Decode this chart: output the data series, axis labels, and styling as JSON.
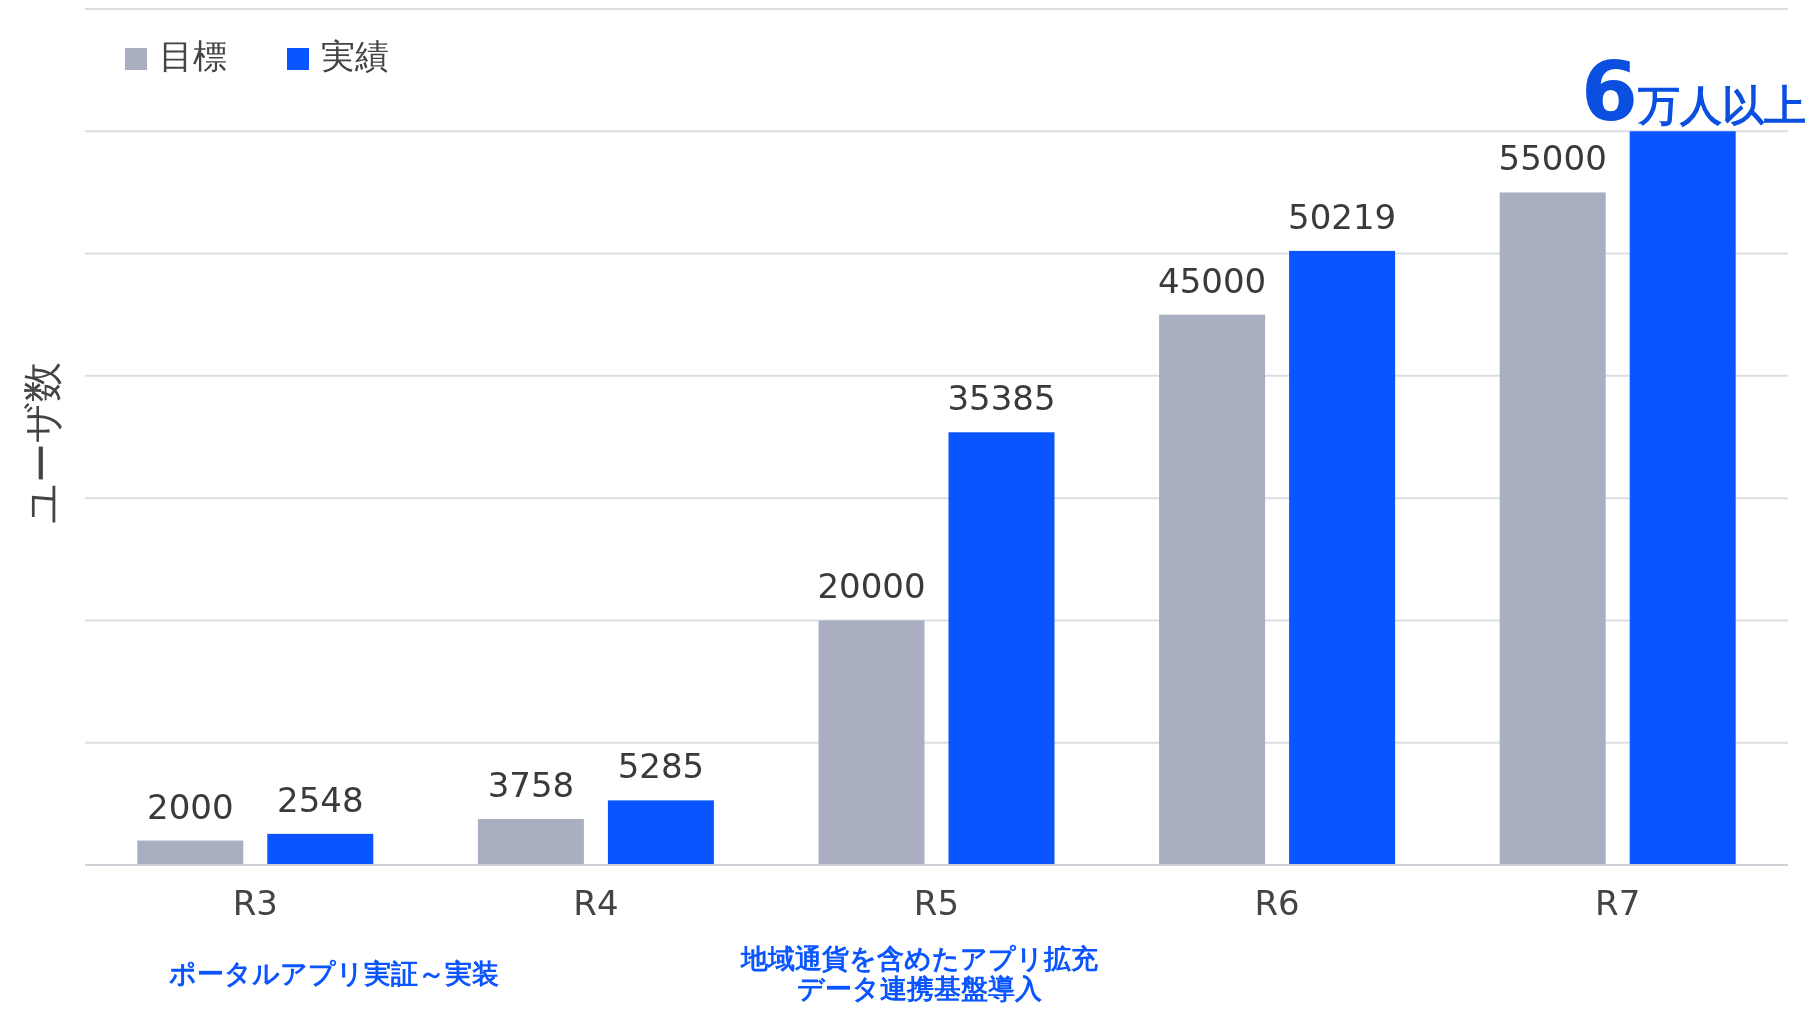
{
  "chart_data": {
    "type": "bar",
    "ylabel": "ユーザ数",
    "categories": [
      "R3",
      "R4",
      "R5",
      "R6",
      "R7"
    ],
    "series": [
      {
        "name": "目標",
        "color": "#a9afc0",
        "values": [
          2000,
          3758,
          20000,
          45000,
          55000
        ],
        "value_labels": [
          "2000",
          "3758",
          "20000",
          "45000",
          "55000"
        ]
      },
      {
        "name": "実績",
        "color": "#0a55ff",
        "values": [
          2548,
          5285,
          35385,
          50219,
          60000
        ],
        "value_labels": [
          "2548",
          "5285",
          "35385",
          "50219",
          null
        ]
      }
    ],
    "ylim": [
      0,
      70000
    ],
    "yticks": [
      {
        "value": 0,
        "label": null
      },
      {
        "value": 10000,
        "label": null
      },
      {
        "value": 20000,
        "label": null
      },
      {
        "value": 30000,
        "label": null
      },
      {
        "value": 40000,
        "label": null
      },
      {
        "value": 50000,
        "label": null
      },
      {
        "value": 60000,
        "label": null
      },
      {
        "value": 70000,
        "label": null
      }
    ],
    "grid": "y",
    "legend": "top left",
    "annotations": [
      "ポータルアプリ実証～実装",
      "地域通貨を含めたアプリ拡充",
      "データ連携基盤導入",
      "6万人以上"
    ]
  }
}
